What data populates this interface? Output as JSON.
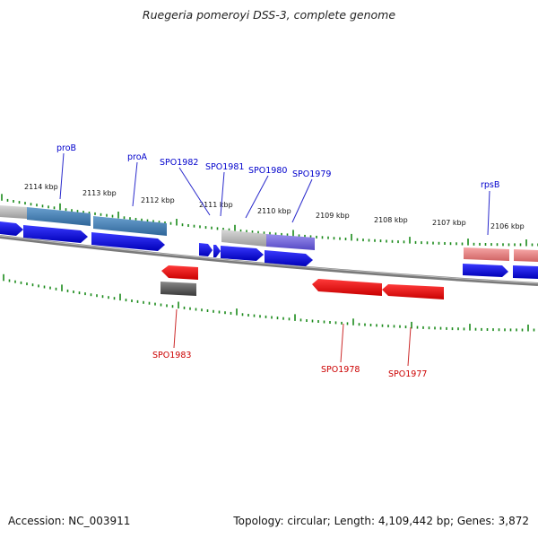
{
  "title": "Ruegeria pomeroyi DSS-3, complete genome",
  "footer": {
    "accession": "Accession: NC_003911",
    "stats": "Topology: circular; Length: 4,109,442 bp; Genes: 3,872"
  },
  "scale_ticks": [
    "2114 kbp",
    "2113 kbp",
    "2112 kbp",
    "2111 kbp",
    "2110 kbp",
    "2109 kbp",
    "2108 kbp",
    "2107 kbp",
    "2106 kbp"
  ],
  "gene_labels": [
    "proB",
    "proA",
    "SPO1982",
    "SPO1981",
    "SPO1980",
    "SPO1979",
    "rpsB",
    "SPO1983",
    "SPO1978",
    "SPO1977"
  ],
  "colors": {
    "forward_label": "#0000cc",
    "reverse_label": "#cc0000",
    "tick": "#1a8a1a",
    "backbone": "#777777"
  }
}
